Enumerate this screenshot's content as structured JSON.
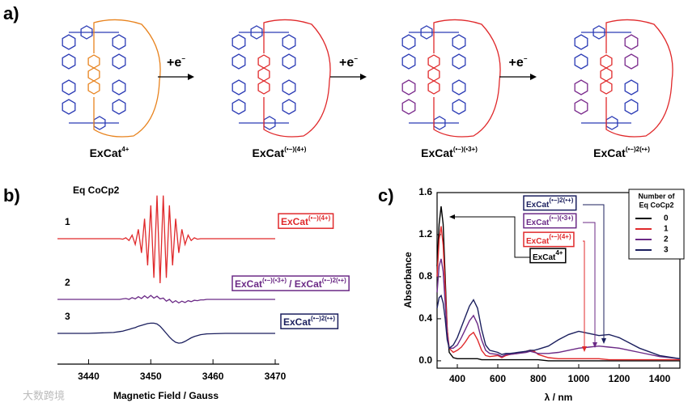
{
  "panel_labels": [
    "a)",
    "b)",
    "c)"
  ],
  "scheme": {
    "steps": [
      [
        {
          "text": "+e"
        },
        {
          "sup": "−"
        }
      ],
      [
        {
          "text": "+e"
        },
        {
          "sup": "−"
        }
      ],
      [
        {
          "text": "+e"
        },
        {
          "sup": "−"
        }
      ]
    ],
    "captions": [
      [
        {
          "text": "ExCat"
        },
        {
          "sup": "4+"
        }
      ],
      [
        {
          "text": "ExCat"
        },
        {
          "sup": "(•−)(4+)"
        }
      ],
      [
        {
          "text": "ExCat"
        },
        {
          "sup": "(•−)(•3+)"
        }
      ],
      [
        {
          "text": "ExCat"
        },
        {
          "sup": "(•−)2(•+)"
        }
      ]
    ]
  },
  "watermark": "大数跨境",
  "chart_data": [
    {
      "type": "line",
      "subtitle": "Eq CoCp2",
      "xlabel": "Magnetic Field / Gauss",
      "xlim": [
        3435,
        3470
      ],
      "xticks": [
        3440,
        3450,
        3460,
        3470
      ],
      "x": [
        3435,
        3440,
        3444,
        3445,
        3445.5,
        3446,
        3446.5,
        3447,
        3447.5,
        3448,
        3448.5,
        3449,
        3449.5,
        3450,
        3450.5,
        3451,
        3451.5,
        3452,
        3452.5,
        3453,
        3453.5,
        3454,
        3454.5,
        3455,
        3455.5,
        3456,
        3456.5,
        3457,
        3457.5,
        3458,
        3458.5,
        3459,
        3462,
        3466,
        3470
      ],
      "series": [
        {
          "name": "1",
          "color": "#e0292b",
          "label": [
            {
              "text": "ExCat"
            },
            {
              "sup": "(•−)(4+)"
            }
          ],
          "values": [
            0,
            0,
            0,
            0,
            -0.01,
            0.02,
            -0.04,
            0.08,
            -0.13,
            0.21,
            -0.32,
            0.45,
            -0.6,
            0.75,
            -0.88,
            0.97,
            -1,
            0.97,
            -0.88,
            0.75,
            -0.6,
            0.45,
            -0.32,
            0.21,
            -0.13,
            0.08,
            -0.04,
            0.02,
            -0.01,
            0,
            0,
            0,
            0,
            0,
            0
          ]
        },
        {
          "name": "2",
          "color": "#6b2a86",
          "label": [
            {
              "text": "ExCat"
            },
            {
              "sup": "(•−)(•3+)"
            },
            {
              "text": "/ ExCat"
            },
            {
              "sup": "(•−)2(•+)"
            }
          ],
          "values": [
            0,
            0,
            0,
            0,
            0.01,
            0.02,
            0,
            0.04,
            0.01,
            0.06,
            0.02,
            0.08,
            0.03,
            0.09,
            0.03,
            0.07,
            0.01,
            0.03,
            -0.04,
            0,
            -0.07,
            -0.03,
            -0.08,
            -0.04,
            -0.07,
            -0.03,
            -0.05,
            -0.02,
            -0.03,
            -0.01,
            -0.01,
            0,
            0,
            0,
            0
          ]
        },
        {
          "name": "3",
          "color": "#1b1f5e",
          "label": [
            {
              "text": "ExCat"
            },
            {
              "sup": "(•−)2(•+)"
            }
          ],
          "values": [
            0,
            0,
            0.02,
            0.04,
            0.05,
            0.07,
            0.09,
            0.11,
            0.13,
            0.16,
            0.18,
            0.2,
            0.22,
            0.23,
            0.23,
            0.21,
            0.16,
            0.08,
            0,
            -0.08,
            -0.15,
            -0.2,
            -0.22,
            -0.21,
            -0.18,
            -0.14,
            -0.1,
            -0.07,
            -0.05,
            -0.03,
            -0.02,
            -0.01,
            0,
            0,
            0
          ]
        }
      ]
    },
    {
      "type": "line",
      "xlabel": "λ / nm",
      "ylabel": "Absorbance",
      "xlim": [
        300,
        1500
      ],
      "xticks": [
        400,
        600,
        800,
        1000,
        1200,
        1400
      ],
      "ylim": [
        -0.07,
        1.6
      ],
      "yticks": [
        {
          "value": 0,
          "label": "0.0"
        },
        0.4,
        0.8,
        1.2,
        1.6
      ],
      "legend_title": [
        "Number of",
        "Eq CoCp2"
      ],
      "legend": "upper right",
      "annotations": [
        [
          {
            "text": "ExCat"
          },
          {
            "sup": "(•−)2(•+)"
          }
        ],
        [
          {
            "text": "ExCat"
          },
          {
            "sup": "(•−)(•3+)"
          }
        ],
        [
          {
            "text": "ExCat"
          },
          {
            "sup": "(•−)(4+)"
          }
        ],
        [
          {
            "text": "ExCat"
          },
          {
            "sup": "4+"
          }
        ]
      ],
      "x": [
        300,
        310,
        320,
        330,
        340,
        350,
        360,
        380,
        400,
        420,
        440,
        460,
        480,
        500,
        520,
        540,
        560,
        600,
        620,
        640,
        660,
        700,
        740,
        760,
        780,
        800,
        850,
        900,
        950,
        1000,
        1050,
        1100,
        1150,
        1200,
        1250,
        1300,
        1400,
        1500
      ],
      "series": [
        {
          "name": "0",
          "color": "#000000",
          "values": [
            0.9,
            1.3,
            1.47,
            1.3,
            0.8,
            0.3,
            0.08,
            0.03,
            0.02,
            0.02,
            0.02,
            0.02,
            0.02,
            0.02,
            0.01,
            0.01,
            0.01,
            0.01,
            0.01,
            0.01,
            0.01,
            0.01,
            0.01,
            0.01,
            0.01,
            0.01,
            0,
            0,
            0,
            0,
            0,
            0,
            0,
            0,
            0,
            0,
            0,
            0
          ]
        },
        {
          "name": "1",
          "color": "#e0292b",
          "values": [
            0.8,
            1.15,
            1.28,
            1.1,
            0.7,
            0.3,
            0.12,
            0.08,
            0.1,
            0.13,
            0.18,
            0.24,
            0.27,
            0.2,
            0.1,
            0.05,
            0.04,
            0.05,
            0.03,
            0.05,
            0.06,
            0.07,
            0.09,
            0.1,
            0.09,
            0.06,
            0.03,
            0.02,
            0.02,
            0.02,
            0.02,
            0.02,
            0.01,
            0.01,
            0.01,
            0.01,
            0.01,
            0.01
          ]
        },
        {
          "name": "2",
          "color": "#6b2a86",
          "values": [
            0.65,
            0.9,
            0.97,
            0.85,
            0.55,
            0.25,
            0.12,
            0.12,
            0.15,
            0.22,
            0.3,
            0.38,
            0.43,
            0.35,
            0.2,
            0.1,
            0.07,
            0.06,
            0.04,
            0.06,
            0.06,
            0.07,
            0.08,
            0.09,
            0.08,
            0.07,
            0.07,
            0.08,
            0.1,
            0.12,
            0.13,
            0.14,
            0.13,
            0.12,
            0.1,
            0.08,
            0.04,
            0.02
          ]
        },
        {
          "name": "3",
          "color": "#1b1f5e",
          "values": [
            0.5,
            0.6,
            0.62,
            0.55,
            0.4,
            0.2,
            0.12,
            0.15,
            0.22,
            0.32,
            0.42,
            0.52,
            0.58,
            0.5,
            0.3,
            0.15,
            0.1,
            0.08,
            0.06,
            0.07,
            0.07,
            0.08,
            0.09,
            0.1,
            0.1,
            0.11,
            0.14,
            0.2,
            0.25,
            0.28,
            0.26,
            0.24,
            0.25,
            0.22,
            0.17,
            0.12,
            0.05,
            0.02
          ]
        }
      ]
    }
  ]
}
